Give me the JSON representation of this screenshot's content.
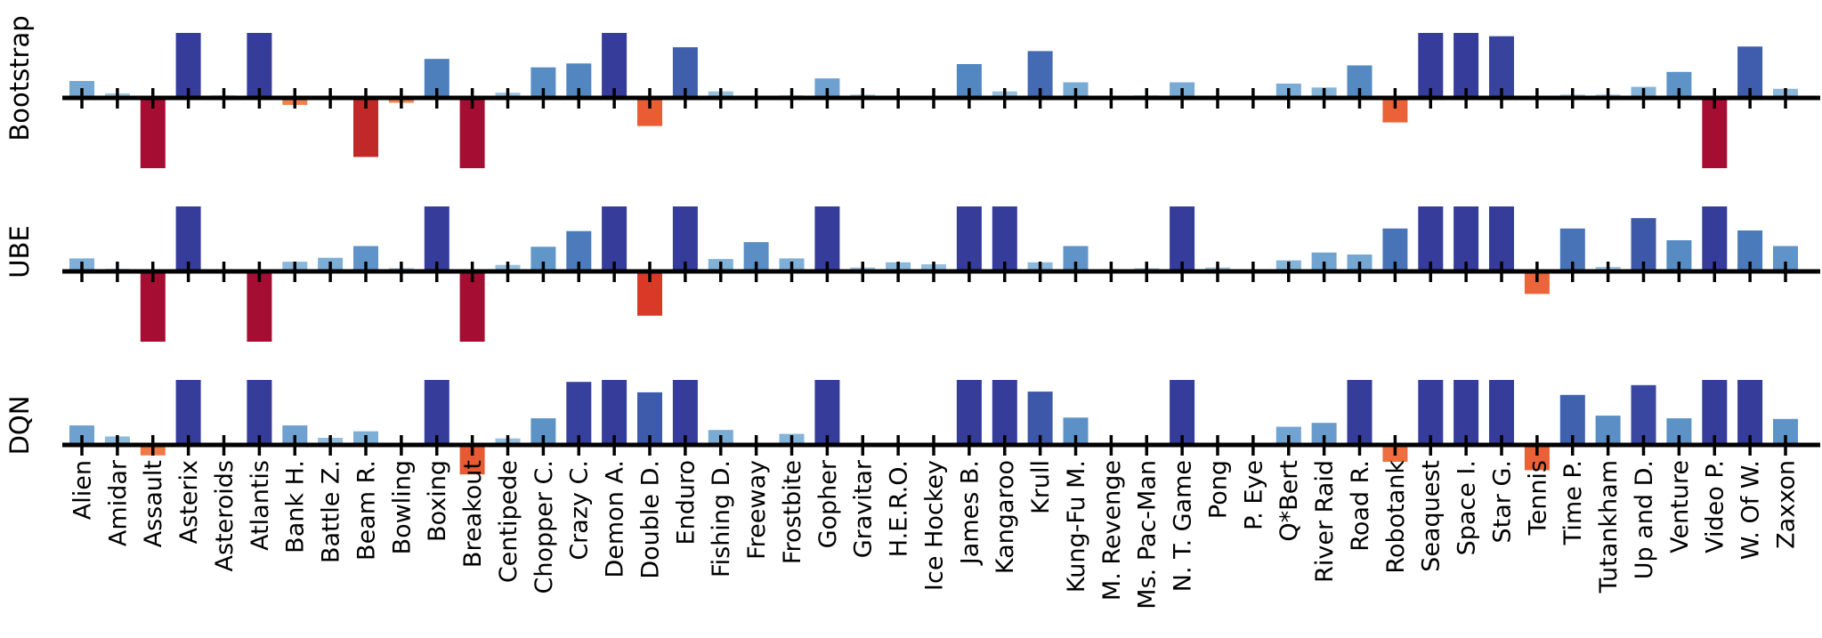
{
  "figure": {
    "description": "Per-game normalized score improvement, three agents compared across 49 Atari games",
    "background": "#ffffff"
  },
  "chart_data": {
    "type": "bar",
    "orientation": "vertical",
    "panels": [
      "Bootstrap",
      "UBE",
      "DQN"
    ],
    "row_labels": [
      "Bootstrap",
      "UBE",
      "DQN"
    ],
    "xlabel": "",
    "ylabel": "",
    "title": "",
    "grid": false,
    "ylim": [
      -1,
      1
    ],
    "value_note": "bar heights are relative scores clipped to [-1, 1]; color encodes signed magnitude (blue positive, red negative)",
    "categories": [
      "Alien",
      "Amidar",
      "Assault",
      "Asterix",
      "Asteroids",
      "Atlantis",
      "Bank H.",
      "Battle Z.",
      "Beam R.",
      "Bowling",
      "Boxing",
      "Breakout",
      "Centipede",
      "Chopper C.",
      "Crazy C.",
      "Demon A.",
      "Double D.",
      "Enduro",
      "Fishing D.",
      "Freeway",
      "Frostbite",
      "Gopher",
      "Gravitar",
      "H.E.R.O.",
      "Ice Hockey",
      "James B.",
      "Kangaroo",
      "Krull",
      "Kung-Fu M.",
      "M. Revenge",
      "Ms. Pac-Man",
      "N. T. Game",
      "Pong",
      "P. Eye",
      "Q*Bert",
      "River Raid",
      "Road R.",
      "Robotank",
      "Seaquest",
      "Space I.",
      "Star G.",
      "Tennis",
      "Time P.",
      "Tutankham",
      "Up and D.",
      "Venture",
      "Video P.",
      "W. Of W.",
      "Zaxxon"
    ],
    "series": [
      {
        "name": "Bootstrap",
        "values": [
          0.26,
          0.07,
          -1,
          1,
          0.04,
          1,
          -0.1,
          0,
          -0.84,
          -0.07,
          0.6,
          -1,
          0.08,
          0.47,
          0.53,
          1,
          -0.4,
          0.78,
          0.1,
          0,
          0.04,
          0.3,
          0.05,
          0,
          -0.03,
          0.52,
          0.1,
          0.72,
          0.24,
          0,
          0.04,
          0.24,
          0,
          0,
          0.22,
          0.16,
          0.5,
          -0.35,
          1,
          1,
          0.95,
          -0.03,
          0.05,
          0.05,
          0.17,
          0.4,
          -1,
          0.79,
          0.14
        ]
      },
      {
        "name": "UBE",
        "values": [
          0.2,
          0.04,
          -1,
          1,
          0.02,
          -1,
          0.15,
          0.21,
          0.39,
          0.05,
          1,
          -1,
          0.1,
          0.38,
          0.62,
          1,
          -0.63,
          1,
          0.19,
          0.45,
          0.2,
          1,
          0.06,
          0.14,
          0.11,
          1,
          1,
          0.14,
          0.39,
          -0.02,
          0.05,
          1,
          0.06,
          0,
          0.17,
          0.29,
          0.26,
          0.66,
          1,
          1,
          1,
          -0.32,
          0.66,
          0.07,
          0.82,
          0.48,
          1,
          0.63,
          0.39
        ]
      },
      {
        "name": "DQN",
        "values": [
          0.3,
          0.13,
          -0.15,
          1,
          0.02,
          1,
          0.3,
          0.11,
          0.21,
          -0.02,
          1,
          -0.42,
          0.1,
          0.41,
          0.97,
          1,
          0.81,
          1,
          0.23,
          0.03,
          0.17,
          1,
          0.02,
          0.02,
          -0.02,
          1,
          1,
          0.82,
          0.42,
          0,
          0.03,
          1,
          0,
          0,
          0.28,
          0.34,
          1,
          -0.24,
          1,
          1,
          1,
          -0.36,
          0.77,
          0.45,
          0.92,
          0.41,
          1,
          1,
          0.4
        ]
      }
    ],
    "palette": {
      "axis_color": "#000000",
      "label_color": "#000000",
      "stops": [
        [
          -1.0,
          "#A60D33"
        ],
        [
          -0.85,
          "#C02828"
        ],
        [
          -0.65,
          "#D93527"
        ],
        [
          -0.5,
          "#E5512D"
        ],
        [
          -0.35,
          "#EB6238"
        ],
        [
          -0.2,
          "#EF7243"
        ],
        [
          -0.02,
          "#F28C55"
        ],
        [
          0.02,
          "#AACDE4"
        ],
        [
          0.18,
          "#82B2D8"
        ],
        [
          0.4,
          "#5E93C8"
        ],
        [
          0.6,
          "#4C7FBC"
        ],
        [
          0.78,
          "#3F5FAD"
        ],
        [
          0.9,
          "#3B4AA2"
        ],
        [
          1.0,
          "#353C9A"
        ]
      ]
    }
  }
}
